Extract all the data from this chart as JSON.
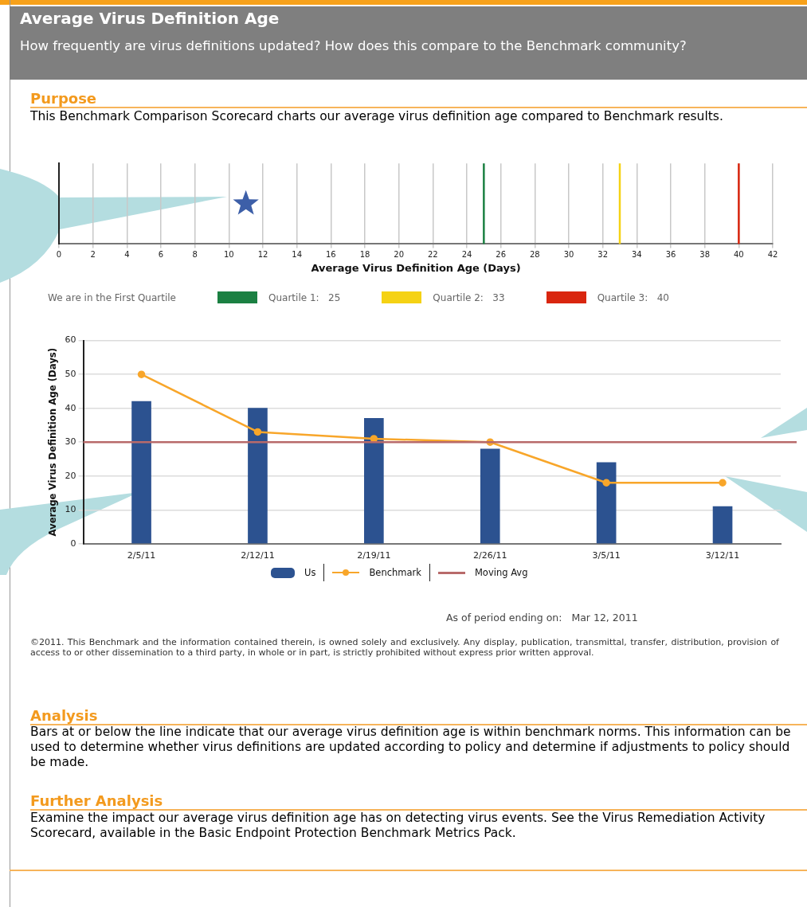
{
  "chart_data": [
    {
      "type": "scatter",
      "title": "Average Virus Definition Age",
      "subtitle": "How frequently are virus definitions updated? How does this compare to the Benchmark community?",
      "annotations": [
        "Purpose",
        "This Benchmark Comparison Scorecard charts our average virus definition age compared to Benchmark results.",
        "We are in the First Quartile"
      ],
      "orientation": "horizontal",
      "categories": [
        null
      ],
      "series": [
        {
          "values": [
            11
          ],
          "color": "#3d5fa8"
        }
      ],
      "marker": "star",
      "xlim": [
        0,
        42
      ],
      "xticks": [
        0,
        2,
        4,
        6,
        8,
        10,
        12,
        14,
        16,
        18,
        20,
        22,
        24,
        26,
        28,
        30,
        32,
        34,
        36,
        38,
        40,
        42
      ],
      "grid": "x",
      "legend": "bottom",
      "xlabel": "Average Virus Definition Age (Days)",
      "ref_lines": [
        {
          "axis": "x",
          "value": 25,
          "label": "Quartile 1:   25",
          "color": "#1b8042"
        },
        {
          "axis": "x",
          "value": 33,
          "label": "Quartile 2:   33",
          "color": "#f5d214"
        },
        {
          "axis": "x",
          "value": 40,
          "label": "Quartile 3:   40",
          "color": "#d9260f"
        }
      ]
    },
    {
      "type": "bar",
      "categories": [
        "2/5/11",
        "2/12/11",
        "2/19/11",
        "2/26/11",
        "3/5/11",
        "3/12/11"
      ],
      "series": [
        {
          "name": "Us",
          "color": "#2c5290",
          "values": [
            42,
            40,
            37,
            28,
            24,
            11
          ]
        },
        {
          "type": "line",
          "name": "Benchmark",
          "color": "#f8a62a",
          "values": [
            50,
            33,
            31,
            30,
            18,
            18
          ]
        }
      ],
      "marker": "circle",
      "ylim": [
        0,
        60
      ],
      "yticks": [
        0,
        10,
        20,
        30,
        40,
        50,
        60
      ],
      "grid": "y",
      "legend": "bottom",
      "ylabel": "Average Virus Definition Age (Days)",
      "ref_lines": [
        {
          "axis": "y",
          "value": 30,
          "label": "Moving Avg",
          "color": "#b86a6a"
        }
      ],
      "annotations": [
        "As of period ending on:   Mar 12, 2011",
        "©2011. This Benchmark and the information contained therein, is owned solely and exclusively. Any display, publication, transmittal, transfer, distribution, provision of access to or other dissemination to a third party, in whole or in part, is strictly prohibited without express prior written approval.",
        "Analysis",
        "Bars at or below the line indicate that our average virus definition age is within benchmark norms. This information can be used to determine whether virus definitions are updated according to policy and determine if adjustments to policy should be made.",
        "Further Analysis",
        "Examine the impact our average virus definition age has on detecting virus events. See the Virus Remediation Activity Scorecard, available in the Basic Endpoint Protection Benchmark Metrics Pack."
      ]
    }
  ]
}
